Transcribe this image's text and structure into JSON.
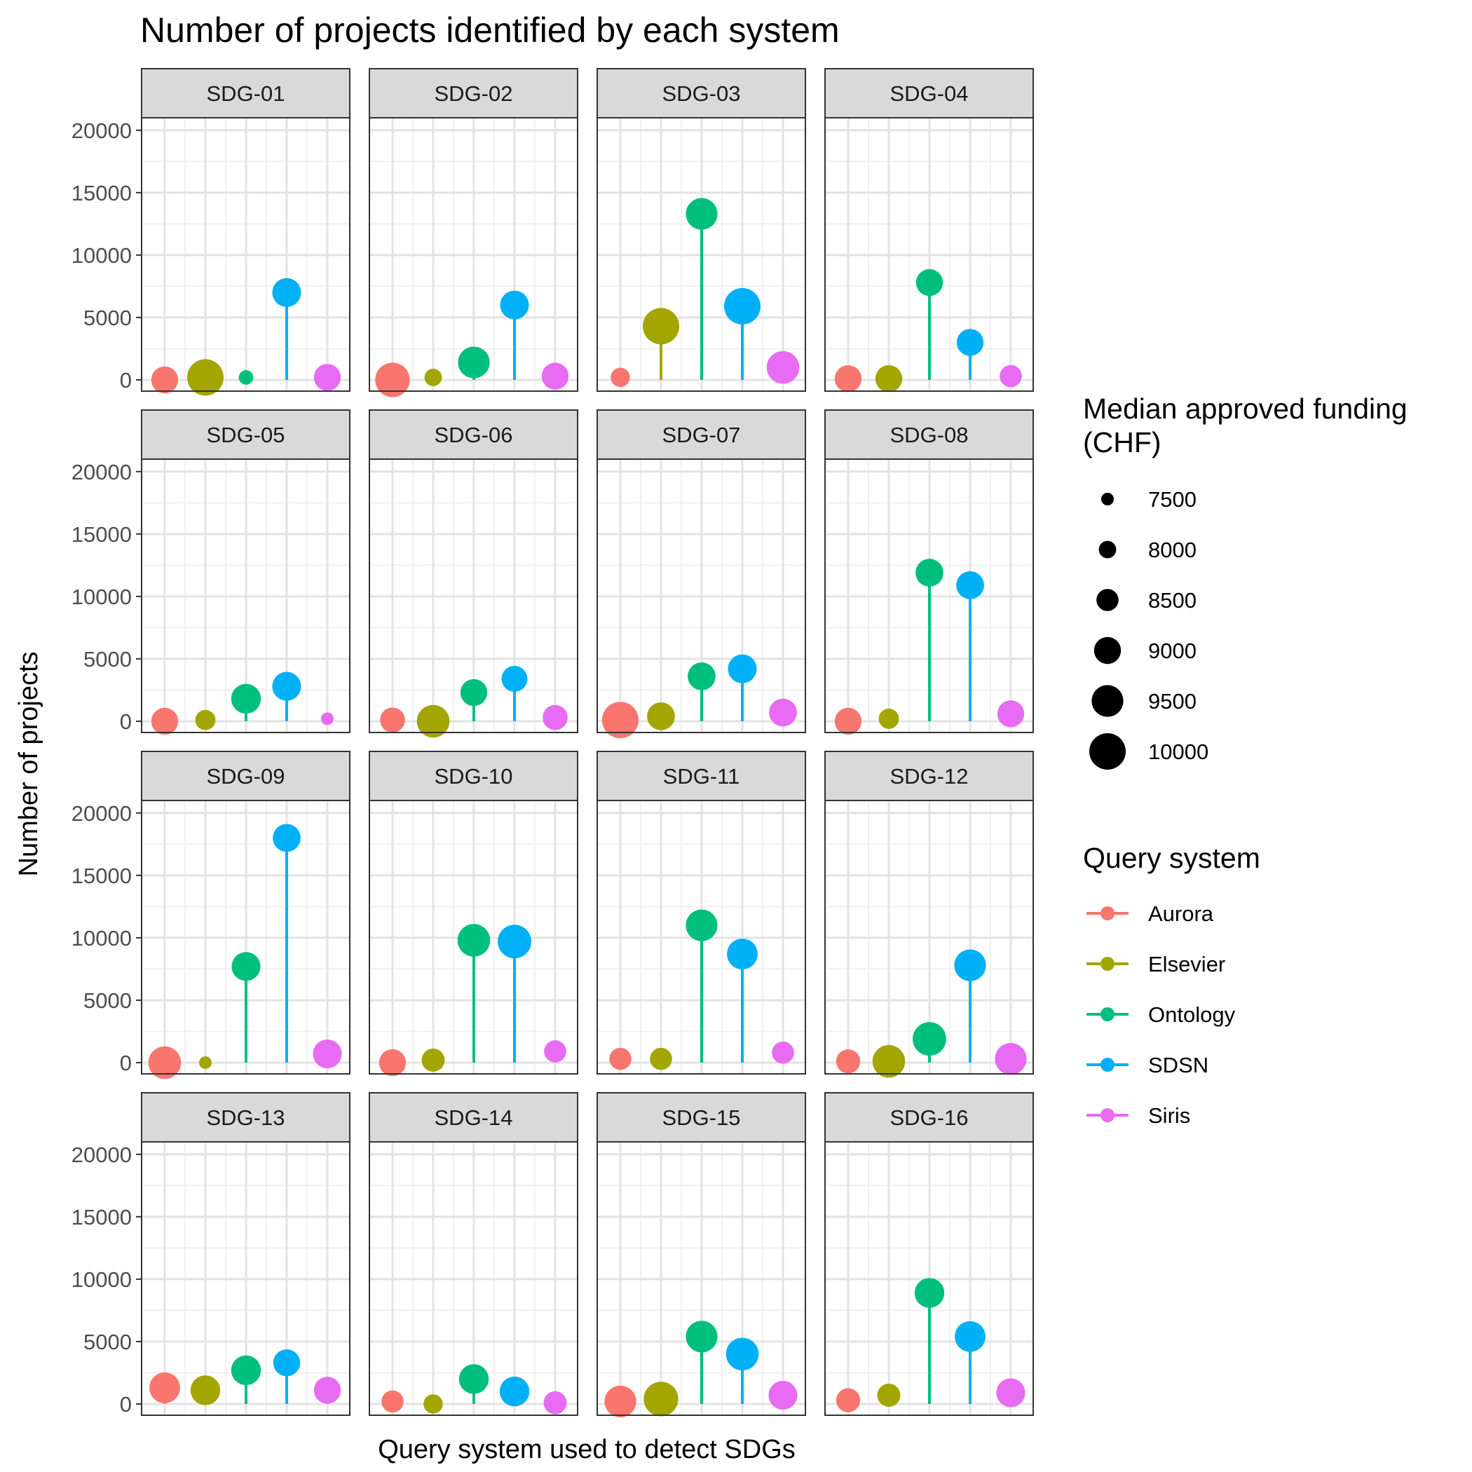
{
  "chart_data": {
    "type": "scatter",
    "subtype": "faceted lollipop",
    "title": "Number of projects identified by each system",
    "xlabel": "Query system used to detect SDGs",
    "ylabel": "Number of projects",
    "ylim": [
      0,
      20000
    ],
    "yticks": [
      0,
      5000,
      10000,
      15000,
      20000
    ],
    "grid": true,
    "legend_position": "right",
    "size_legend": {
      "title": "Median approved funding (CHF)",
      "values": [
        7500,
        8000,
        8500,
        9000,
        9500,
        10000
      ]
    },
    "color_legend": {
      "title": "Query system",
      "entries": [
        {
          "name": "Aurora",
          "color": "#F8766D"
        },
        {
          "name": "Elsevier",
          "color": "#A3A500"
        },
        {
          "name": "Ontology",
          "color": "#00BF7D"
        },
        {
          "name": "SDSN",
          "color": "#00B0F6"
        },
        {
          "name": "Siris",
          "color": "#E76BF3"
        }
      ]
    },
    "systems": [
      "Aurora",
      "Elsevier",
      "Ontology",
      "SDSN",
      "Siris"
    ],
    "panels": [
      {
        "label": "SDG-01",
        "values": [
          0,
          200,
          200,
          7000,
          200
        ],
        "funding": [
          9000,
          10000,
          7700,
          9200,
          9000
        ]
      },
      {
        "label": "SDG-02",
        "values": [
          0,
          200,
          1400,
          6000,
          300
        ],
        "funding": [
          9800,
          8000,
          9500,
          9200,
          9000
        ]
      },
      {
        "label": "SDG-03",
        "values": [
          200,
          4300,
          13300,
          5900,
          1000
        ],
        "funding": [
          8200,
          10000,
          9500,
          10000,
          9600
        ]
      },
      {
        "label": "SDG-04",
        "values": [
          100,
          100,
          7800,
          3000,
          300
        ],
        "funding": [
          9000,
          9000,
          9000,
          9000,
          8500
        ]
      },
      {
        "label": "SDG-05",
        "values": [
          0,
          100,
          1800,
          2800,
          200
        ],
        "funding": [
          9000,
          8300,
          9300,
          9200,
          7500
        ]
      },
      {
        "label": "SDG-06",
        "values": [
          100,
          0,
          2300,
          3400,
          300
        ],
        "funding": [
          8800,
          9600,
          9000,
          8900,
          8800
        ]
      },
      {
        "label": "SDG-07",
        "values": [
          100,
          400,
          3600,
          4200,
          700
        ],
        "funding": [
          10000,
          9100,
          9100,
          9200,
          9100
        ]
      },
      {
        "label": "SDG-08",
        "values": [
          0,
          200,
          11900,
          10900,
          600
        ],
        "funding": [
          9000,
          8300,
          9100,
          9100,
          9000
        ]
      },
      {
        "label": "SDG-09",
        "values": [
          0,
          0,
          7700,
          18000,
          700
        ],
        "funding": [
          9600,
          7500,
          9200,
          9100,
          9200
        ]
      },
      {
        "label": "SDG-10",
        "values": [
          0,
          200,
          9800,
          9700,
          900
        ],
        "funding": [
          9000,
          8600,
          9600,
          9700,
          8500
        ]
      },
      {
        "label": "SDG-11",
        "values": [
          300,
          300,
          11000,
          8700,
          800
        ],
        "funding": [
          8500,
          8500,
          9500,
          9400,
          8500
        ]
      },
      {
        "label": "SDG-12",
        "values": [
          100,
          100,
          1900,
          7800,
          300
        ],
        "funding": [
          8700,
          9600,
          9700,
          9500,
          9500
        ]
      },
      {
        "label": "SDG-13",
        "values": [
          1300,
          1100,
          2700,
          3300,
          1100
        ],
        "funding": [
          9400,
          9300,
          9300,
          9000,
          9000
        ]
      },
      {
        "label": "SDG-14",
        "values": [
          200,
          0,
          2000,
          1000,
          100
        ],
        "funding": [
          8500,
          8200,
          9300,
          9300,
          8600
        ]
      },
      {
        "label": "SDG-15",
        "values": [
          200,
          400,
          5400,
          4000,
          700
        ],
        "funding": [
          9500,
          9800,
          9500,
          9600,
          9200
        ]
      },
      {
        "label": "SDG-16",
        "values": [
          300,
          700,
          8900,
          5400,
          900
        ],
        "funding": [
          8700,
          8600,
          9300,
          9400,
          9200
        ]
      }
    ]
  }
}
